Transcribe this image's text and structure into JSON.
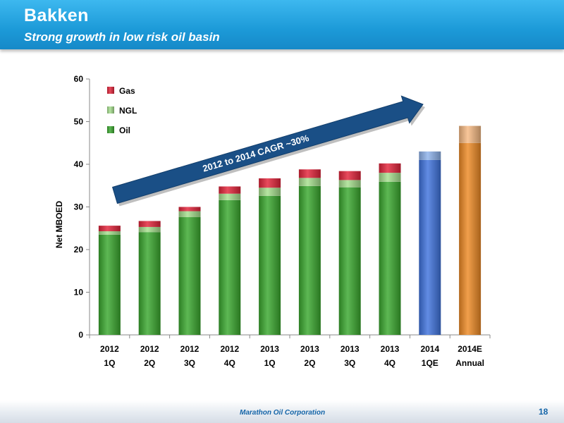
{
  "slide": {
    "title": "Bakken",
    "subtitle": "Strong growth in low risk oil basin"
  },
  "footer": {
    "company": "Marathon Oil Corporation",
    "page_number": "18"
  },
  "chart_data": {
    "type": "bar",
    "stacked": true,
    "categories": [
      [
        "2012",
        "1Q"
      ],
      [
        "2012",
        "2Q"
      ],
      [
        "2012",
        "3Q"
      ],
      [
        "2012",
        "4Q"
      ],
      [
        "2013",
        "1Q"
      ],
      [
        "2013",
        "2Q"
      ],
      [
        "2013",
        "3Q"
      ],
      [
        "2013",
        "4Q"
      ],
      [
        "2014",
        "1QE"
      ],
      [
        "2014E",
        "Annual"
      ]
    ],
    "series": [
      {
        "name": "Oil",
        "color": "#3aa82e",
        "values": [
          23.5,
          24.1,
          27.6,
          31.6,
          32.6,
          34.9,
          34.6,
          35.9,
          null,
          null
        ]
      },
      {
        "name": "NGL",
        "color": "#a6df8e",
        "values": [
          0.8,
          1.2,
          1.4,
          1.5,
          1.9,
          1.9,
          1.7,
          2.1,
          null,
          null
        ]
      },
      {
        "name": "Gas",
        "color": "#e3243a",
        "values": [
          1.3,
          1.4,
          1.0,
          1.7,
          2.2,
          2.0,
          2.1,
          2.2,
          null,
          null
        ]
      }
    ],
    "estimates": [
      {
        "index": 8,
        "base": 41,
        "top": 43,
        "color": "#3f73de",
        "top_color": "#8eb2ec"
      },
      {
        "index": 9,
        "base": 45,
        "top": 49,
        "color": "#ee8a25",
        "top_color": "#f6b983"
      }
    ],
    "legend_order": [
      "Gas",
      "NGL",
      "Oil"
    ],
    "legend_position": "top-left",
    "ylabel": "Net MBOED",
    "ylim": [
      0,
      60
    ],
    "yticks": [
      0,
      10,
      20,
      30,
      40,
      50,
      60
    ],
    "grid": false,
    "annotation": {
      "text": "2012 to 2014 CAGR ~30%",
      "color": "#1a4f86"
    }
  }
}
